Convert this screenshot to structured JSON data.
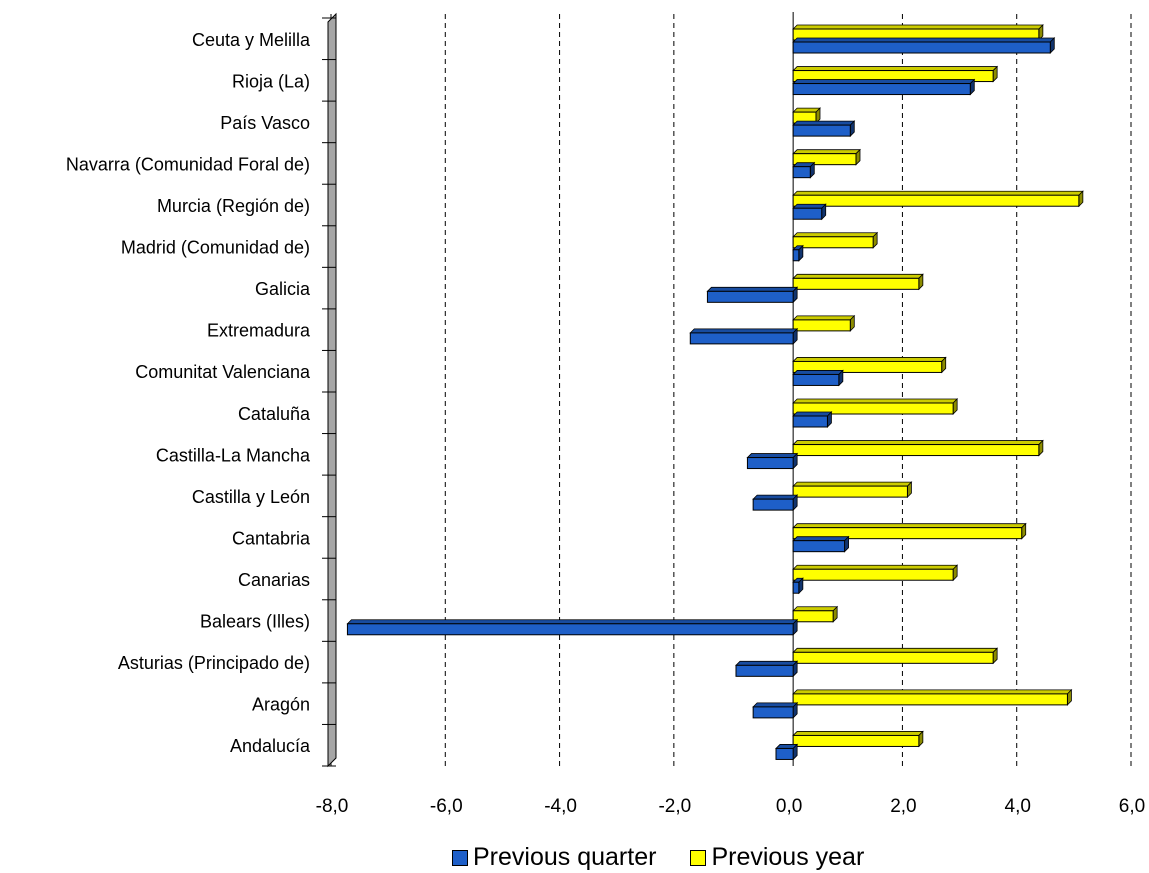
{
  "chart_data": {
    "type": "bar",
    "orientation": "horizontal",
    "categories": [
      "Ceuta y Melilla",
      "Rioja (La)",
      "País Vasco",
      "Navarra (Comunidad Foral de)",
      "Murcia (Región de)",
      "Madrid (Comunidad de)",
      "Galicia",
      "Extremadura",
      "Comunitat Valenciana",
      "Cataluña",
      "Castilla-La Mancha",
      "Castilla y León",
      "Cantabria",
      "Canarias",
      "Balears (Illes)",
      "Asturias (Principado de)",
      "Aragón",
      "Andalucía"
    ],
    "series": [
      {
        "name": "Previous year",
        "color": "#FFFF00",
        "values": [
          4.3,
          3.5,
          0.4,
          1.1,
          5.0,
          1.4,
          2.2,
          1.0,
          2.6,
          2.8,
          4.3,
          2.0,
          4.0,
          2.8,
          0.7,
          3.5,
          4.8,
          2.2
        ]
      },
      {
        "name": "Previous quarter",
        "color": "#1E5FC8",
        "values": [
          4.5,
          3.1,
          1.0,
          0.3,
          0.5,
          0.1,
          -1.5,
          -1.8,
          0.8,
          0.6,
          -0.8,
          -0.7,
          0.9,
          0.1,
          -7.8,
          -1.0,
          -0.7,
          -0.3
        ]
      }
    ],
    "xlim": [
      -8.0,
      6.0
    ],
    "xticks": [
      "-8,0",
      "-6,0",
      "-4,0",
      "-2,0",
      "0,0",
      "2,0",
      "4,0",
      "6,0"
    ],
    "grid": true,
    "legend_position": "bottom"
  },
  "legend": {
    "previous_quarter": "Previous quarter",
    "previous_year": "Previous year"
  }
}
